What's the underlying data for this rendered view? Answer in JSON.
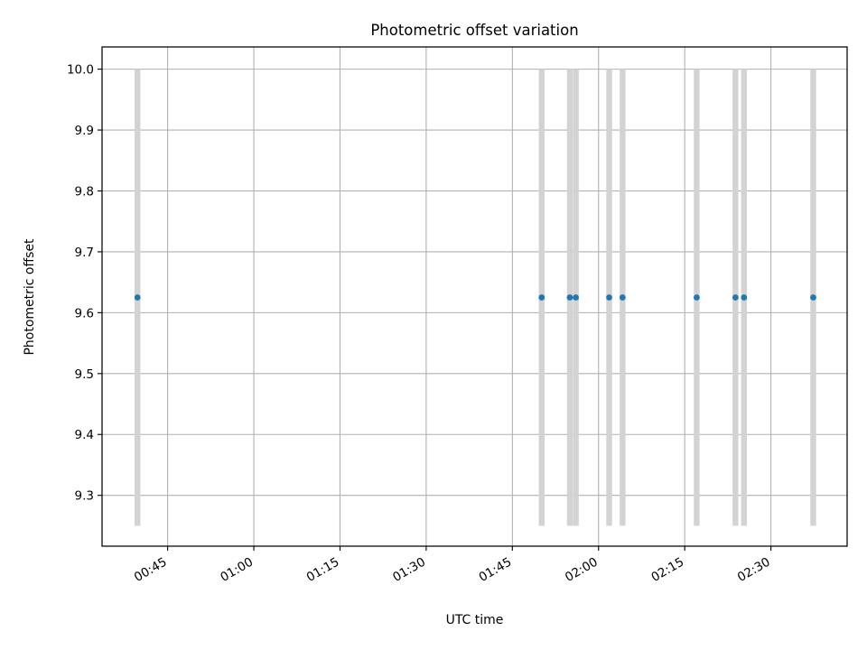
{
  "chart_data": {
    "type": "scatter",
    "title": "Photometric offset variation",
    "xlabel": "UTC time",
    "ylabel": "Photometric offset",
    "x_ticks": [
      "00:45",
      "01:00",
      "01:15",
      "01:30",
      "01:45",
      "02:00",
      "02:15",
      "02:30"
    ],
    "y_ticks": [
      "9.3",
      "9.4",
      "9.5",
      "9.6",
      "9.7",
      "9.8",
      "9.9",
      "10.0"
    ],
    "xlim": [
      "00:33:35",
      "02:43:16"
    ],
    "ylim": [
      9.2165,
      10.0365
    ],
    "grid": true,
    "bar_range": [
      9.25,
      10.0
    ],
    "times": [
      "00:39:45",
      "01:50:06",
      "01:55:00",
      "01:56:03",
      "02:01:51",
      "02:04:11",
      "02:17:05",
      "02:23:50",
      "02:25:19",
      "02:37:22"
    ],
    "values": [
      9.625,
      9.625,
      9.625,
      9.625,
      9.625,
      9.625,
      9.625,
      9.625,
      9.625,
      9.625
    ],
    "point_color": "#1f77b4",
    "bar_color": "#d3d3d3"
  }
}
